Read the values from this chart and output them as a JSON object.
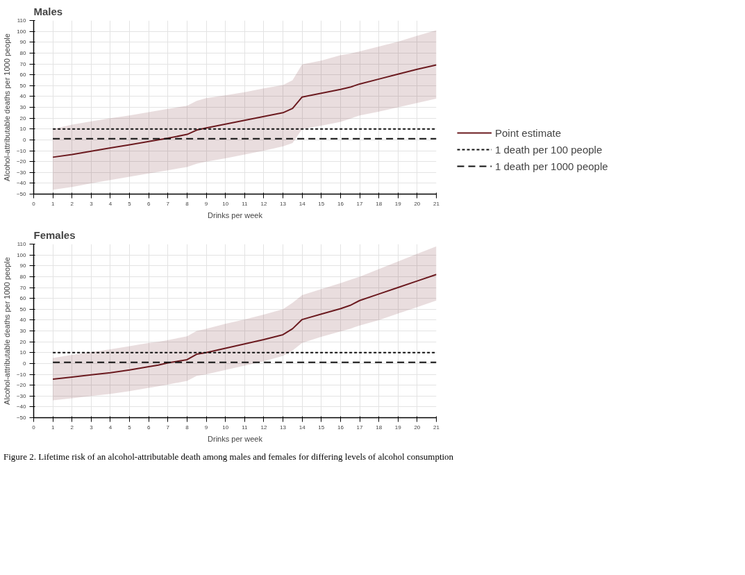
{
  "chart_data": [
    {
      "type": "line",
      "title": "Males",
      "xlabel": "Drinks per week",
      "ylabel": "Alcohol-attributable deaths per 1000 people",
      "xlim": [
        0,
        21
      ],
      "ylim": [
        -50,
        110
      ],
      "xticks": [
        0,
        1,
        2,
        3,
        4,
        5,
        6,
        7,
        8,
        9,
        10,
        11,
        12,
        13,
        14,
        15,
        16,
        17,
        18,
        19,
        20,
        21
      ],
      "yticks": [
        -50,
        -40,
        -30,
        -20,
        -10,
        0,
        10,
        20,
        30,
        40,
        50,
        60,
        70,
        80,
        90,
        100,
        110
      ],
      "grid": true,
      "legend": "right",
      "series": [
        {
          "name": "Point estimate",
          "color": "#6b1a1f",
          "x": [
            1,
            2,
            3,
            4,
            5,
            6,
            7,
            8,
            8.5,
            9,
            10,
            11,
            12,
            13,
            13.5,
            14,
            15,
            16,
            16.5,
            17,
            18,
            19,
            20,
            21
          ],
          "values": [
            -16,
            -13.5,
            -10.5,
            -7.5,
            -4.5,
            -1.5,
            1.5,
            5,
            9,
            11,
            14.5,
            18,
            21.5,
            25,
            29,
            39.5,
            43,
            46.5,
            48.5,
            51.5,
            56,
            60.5,
            65,
            69
          ],
          "lower": [
            -46,
            -43.5,
            -40,
            -37,
            -34,
            -31,
            -28,
            -25,
            -22,
            -20,
            -17,
            -13.5,
            -10,
            -6,
            -3,
            10,
            13,
            16.5,
            19.5,
            22.5,
            26,
            30,
            34,
            38
          ],
          "upper": [
            10,
            14,
            17,
            20,
            22.5,
            25.5,
            28.5,
            31.5,
            36,
            38.5,
            41,
            44,
            47.5,
            50.5,
            55,
            69.5,
            73,
            78,
            79.5,
            81.5,
            86,
            90.5,
            96,
            101
          ]
        }
      ],
      "ref_lines": [
        {
          "axis": "y",
          "value": 10,
          "label": "1 death per 100 people",
          "color": "#111111",
          "line_style": "dashed"
        },
        {
          "axis": "y",
          "value": 1,
          "label": "1 death per 1000 people",
          "color": "#111111",
          "line_style": "longdash"
        }
      ]
    },
    {
      "type": "line",
      "title": "Females",
      "xlabel": "Drinks per week",
      "ylabel": "Alcohol-attributable deaths per 1000 people",
      "xlim": [
        0,
        21
      ],
      "ylim": [
        -50,
        110
      ],
      "xticks": [
        0,
        1,
        2,
        3,
        4,
        5,
        6,
        7,
        8,
        9,
        10,
        11,
        12,
        13,
        14,
        15,
        16,
        17,
        18,
        19,
        20,
        21
      ],
      "yticks": [
        -50,
        -40,
        -30,
        -20,
        -10,
        0,
        10,
        20,
        30,
        40,
        50,
        60,
        70,
        80,
        90,
        100,
        110
      ],
      "grid": true,
      "series": [
        {
          "color": "#6b1a1f",
          "x": [
            1,
            2,
            3,
            4,
            5,
            6,
            6.5,
            7,
            8,
            8.5,
            9,
            10,
            11,
            12,
            13,
            13.5,
            14,
            15,
            16,
            16.5,
            17,
            18,
            19,
            20,
            21
          ],
          "values": [
            -14.5,
            -12.5,
            -10.5,
            -8.5,
            -6,
            -3,
            -1.5,
            0.5,
            3.5,
            8.5,
            10,
            14,
            18,
            22,
            26.5,
            32,
            40.5,
            45.5,
            50.5,
            53.5,
            58,
            64,
            70,
            76,
            82
          ],
          "lower": [
            -34,
            -32,
            -30,
            -28,
            -25.5,
            -22.5,
            -21,
            -19.5,
            -16,
            -11.5,
            -10,
            -6,
            -2,
            2,
            7,
            12,
            19,
            24.5,
            29.5,
            32,
            35,
            40,
            46,
            52,
            58
          ],
          "upper": [
            5,
            8,
            10.5,
            13,
            16,
            19,
            20,
            21.5,
            25,
            30,
            32,
            36.5,
            40.5,
            45,
            50,
            56,
            63,
            68.5,
            74,
            77,
            80,
            87,
            94,
            101,
            108
          ]
        }
      ],
      "ref_lines": [
        {
          "axis": "y",
          "value": 10,
          "color": "#111111",
          "line_style": "dashed"
        },
        {
          "axis": "y",
          "value": 1,
          "color": "#111111",
          "line_style": "longdash"
        }
      ],
      "annotations": [
        "Figure 2.    Lifetime risk of an alcohol-attributable death among males and females for differing levels of alcohol consumption"
      ]
    }
  ]
}
